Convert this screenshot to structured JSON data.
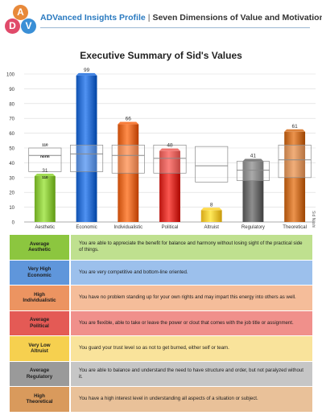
{
  "header": {
    "brand": "ADVanced Insights Profile",
    "separator": "|",
    "subtitle": "Seven Dimensions of Value and Motivation"
  },
  "logo": {
    "letters": [
      "A",
      "D",
      "V"
    ]
  },
  "side_note": "Sid Nashi",
  "colors": {
    "aesthetic": "#8cc63f",
    "economic": "#2d6fcf",
    "individualistic": "#e46a28",
    "political": "#d8332c",
    "altruist": "#f5c637",
    "regulatory": "#6b6b6b",
    "theoretical": "#c9702a"
  },
  "chart_data": {
    "type": "bar",
    "title": "Executive Summary of Sid's Values",
    "ylim": [
      0,
      100
    ],
    "yticks": [
      0,
      10,
      20,
      30,
      40,
      50,
      60,
      70,
      80,
      90,
      100
    ],
    "categories": [
      "Aesthetic",
      "Economic",
      "Individualistic",
      "Political",
      "Altruist",
      "Regulatory",
      "Theoretical"
    ],
    "values": [
      31,
      99,
      66,
      48,
      8,
      41,
      61
    ],
    "norm_bands": [
      {
        "low": 34,
        "norm": 45,
        "high": 50
      },
      {
        "low": 34,
        "norm": 46,
        "high": 52
      },
      {
        "low": 33,
        "norm": 45,
        "high": 52
      },
      {
        "low": 33,
        "norm": 43,
        "high": 52
      },
      {
        "low": 27,
        "norm": 38,
        "high": 51
      },
      {
        "low": 28,
        "norm": 35,
        "high": 41
      },
      {
        "low": 30,
        "norm": 42,
        "high": 52
      }
    ],
    "band_labels": {
      "high": "110",
      "norm": "norm",
      "low": "110"
    },
    "grid": true
  },
  "table": {
    "rows": [
      {
        "label": "Average\nAesthetic",
        "desc": "You are able to appreciate the benefit for balance and harmony without losing sight of the practical side of things.",
        "label_bg": "#8cc63f",
        "desc_bg": "#bfe08f"
      },
      {
        "label": "Very High\nEconomic",
        "desc": "You are very competitive and bottom-line oriented.",
        "label_bg": "#5f96db",
        "desc_bg": "#9cc0ec"
      },
      {
        "label": "High\nIndividualistic",
        "desc": "You have no problem standing up for your own rights and may impart this energy into others as well.",
        "label_bg": "#ec9461",
        "desc_bg": "#f5bd9a"
      },
      {
        "label": "Average\nPolitical",
        "desc": "You are flexible, able to take or leave the power or clout that comes with the job title or assignment.",
        "label_bg": "#e45a55",
        "desc_bg": "#f0908b"
      },
      {
        "label": "Very Low\nAltruist",
        "desc": "You guard your trust level so as not to get burned, either self or team.",
        "label_bg": "#f6d04f",
        "desc_bg": "#f9e39b"
      },
      {
        "label": "Average\nRegulatory",
        "desc": "You are able to balance and understand the need to have structure and order, but not paralyzed without it.",
        "label_bg": "#9a9a9a",
        "desc_bg": "#c6c6c6"
      },
      {
        "label": "High\nTheoretical",
        "desc": "You have a high interest level in understanding all aspects of a situation or subject.",
        "label_bg": "#d99a5c",
        "desc_bg": "#e9c199"
      }
    ]
  }
}
